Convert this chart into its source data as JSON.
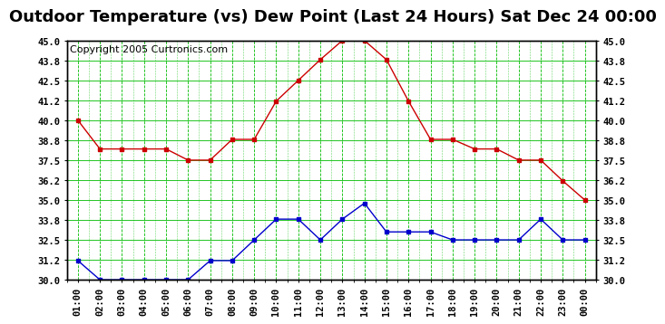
{
  "title": "Outdoor Temperature (vs) Dew Point (Last 24 Hours) Sat Dec 24 00:00",
  "copyright": "Copyright 2005 Curtronics.com",
  "x_labels": [
    "01:00",
    "02:00",
    "03:00",
    "04:00",
    "05:00",
    "06:00",
    "07:00",
    "08:00",
    "09:00",
    "10:00",
    "11:00",
    "12:00",
    "13:00",
    "14:00",
    "15:00",
    "16:00",
    "17:00",
    "18:00",
    "19:00",
    "20:00",
    "21:00",
    "22:00",
    "23:00",
    "00:00"
  ],
  "temp_data": [
    40.0,
    38.2,
    38.2,
    38.2,
    38.2,
    37.5,
    37.5,
    38.8,
    38.8,
    41.2,
    42.5,
    43.8,
    45.0,
    45.0,
    43.8,
    41.2,
    38.8,
    38.8,
    38.2,
    38.2,
    37.5,
    37.5,
    36.2,
    35.0
  ],
  "dew_data": [
    31.2,
    30.0,
    30.0,
    30.0,
    30.0,
    30.0,
    31.2,
    31.2,
    32.5,
    33.8,
    33.8,
    32.5,
    33.8,
    34.8,
    33.0,
    33.0,
    33.0,
    32.5,
    32.5,
    32.5,
    32.5,
    33.8,
    32.5,
    32.5
  ],
  "temp_color": "#cc0000",
  "dew_color": "#0000cc",
  "bg_color": "#ffffff",
  "plot_bg": "#ffffff",
  "grid_color": "#00bb00",
  "minor_grid_color": "#88dd88",
  "ylim_min": 30.0,
  "ylim_max": 45.0,
  "ytick_interval": 1.25,
  "title_fontsize": 13,
  "copyright_fontsize": 8
}
